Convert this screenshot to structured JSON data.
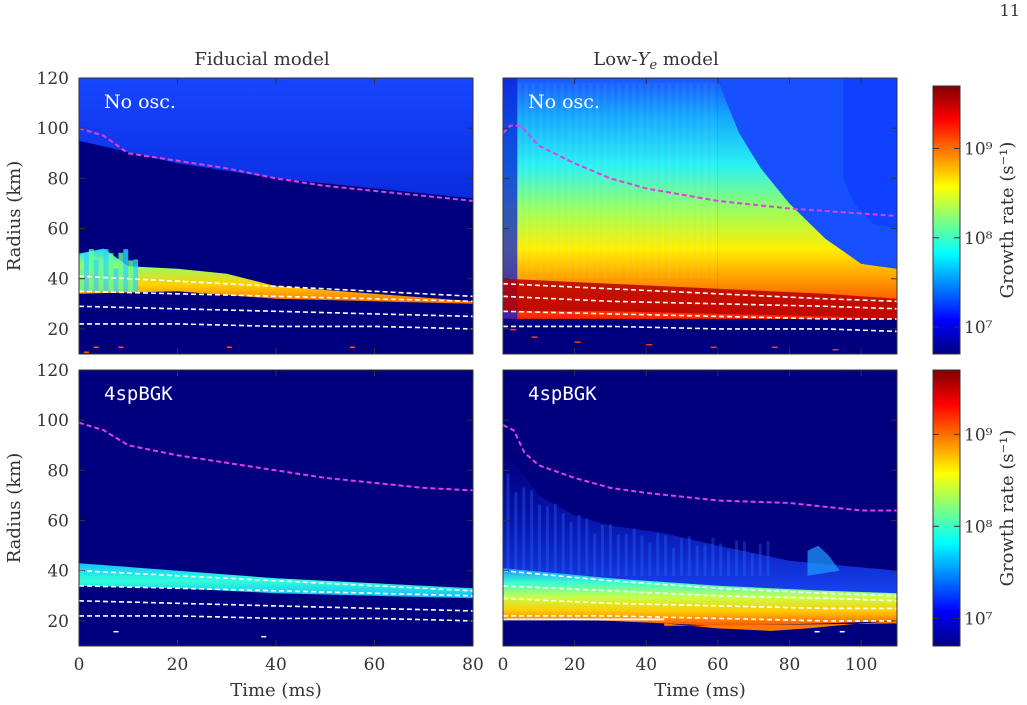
{
  "page_number": "11",
  "colors": {
    "background": "#00007f",
    "magenta_contour": "#e040e0",
    "white_contour": "#ffffff"
  },
  "chart_data": [
    {
      "type": "heatmap",
      "panel": "top-left",
      "column_title": "Fiducial model",
      "label": "No osc.",
      "xlabel": "",
      "ylabel": "Radius (km)",
      "xlim": [
        0,
        80
      ],
      "ylim": [
        10,
        120
      ],
      "xticks": [
        0,
        20,
        40,
        60,
        80
      ],
      "yticks": [
        20,
        40,
        60,
        80,
        100,
        120
      ],
      "xtick_labels": [],
      "ytick_labels": [
        "20",
        "40",
        "60",
        "80",
        "100",
        "120"
      ],
      "colorscale": "jet",
      "magenta_contour": [
        [
          0,
          100
        ],
        [
          5,
          97
        ],
        [
          10,
          90
        ],
        [
          20,
          87
        ],
        [
          30,
          84
        ],
        [
          40,
          80
        ],
        [
          50,
          77
        ],
        [
          60,
          75
        ],
        [
          70,
          73
        ],
        [
          80,
          71
        ]
      ],
      "white_contours": [
        [
          [
            0,
            41
          ],
          [
            20,
            39
          ],
          [
            40,
            37
          ],
          [
            60,
            35
          ],
          [
            80,
            33
          ]
        ],
        [
          [
            0,
            35
          ],
          [
            20,
            34
          ],
          [
            40,
            33
          ],
          [
            60,
            32
          ],
          [
            80,
            31
          ]
        ],
        [
          [
            0,
            29
          ],
          [
            20,
            28
          ],
          [
            40,
            27
          ],
          [
            60,
            26
          ],
          [
            80,
            25
          ]
        ],
        [
          [
            0,
            22
          ],
          [
            20,
            22
          ],
          [
            40,
            21
          ],
          [
            60,
            21
          ],
          [
            80,
            20
          ]
        ]
      ],
      "regions": [
        {
          "name": "outer-blue",
          "x": [
            0,
            80
          ],
          "upper": [
            [
              0,
              120
            ],
            [
              80,
              120
            ]
          ],
          "lower": [
            [
              0,
              95
            ],
            [
              20,
              86
            ],
            [
              40,
              80
            ],
            [
              60,
              76
            ],
            [
              80,
              72
            ]
          ],
          "growth_rate": 15000000.0
        },
        {
          "name": "unstable-band",
          "x": [
            0,
            80
          ],
          "upper": [
            [
              0,
              50
            ],
            [
              5,
              52
            ],
            [
              10,
              45
            ],
            [
              20,
              44
            ],
            [
              30,
              42
            ],
            [
              40,
              37
            ],
            [
              60,
              34
            ],
            [
              80,
              31
            ]
          ],
          "lower": [
            [
              0,
              34
            ],
            [
              20,
              35
            ],
            [
              40,
              32
            ],
            [
              60,
              31
            ],
            [
              80,
              30
            ]
          ],
          "growth_rate": 150000000.0
        }
      ]
    },
    {
      "type": "heatmap",
      "panel": "top-right",
      "column_title": "Low-Y_e model",
      "label": "No osc.",
      "xlabel": "",
      "ylabel": "",
      "xlim": [
        0,
        110
      ],
      "ylim": [
        10,
        120
      ],
      "xticks": [
        0,
        20,
        40,
        60,
        80,
        100
      ],
      "yticks": [
        20,
        40,
        60,
        80,
        100,
        120
      ],
      "xtick_labels": [],
      "ytick_labels": [],
      "colorscale": "jet",
      "magenta_contour": [
        [
          0,
          98
        ],
        [
          2,
          101
        ],
        [
          5,
          101
        ],
        [
          10,
          93
        ],
        [
          20,
          86
        ],
        [
          30,
          80
        ],
        [
          40,
          76
        ],
        [
          60,
          71
        ],
        [
          80,
          68
        ],
        [
          100,
          66
        ],
        [
          110,
          65
        ]
      ],
      "white_contours": [
        [
          [
            0,
            38
          ],
          [
            30,
            36
          ],
          [
            60,
            34
          ],
          [
            90,
            32
          ],
          [
            110,
            31
          ]
        ],
        [
          [
            0,
            33
          ],
          [
            30,
            31
          ],
          [
            60,
            30
          ],
          [
            90,
            29
          ],
          [
            110,
            28
          ]
        ],
        [
          [
            0,
            27
          ],
          [
            30,
            26
          ],
          [
            60,
            25
          ],
          [
            90,
            24
          ],
          [
            110,
            24
          ]
        ],
        [
          [
            0,
            21
          ],
          [
            30,
            21
          ],
          [
            60,
            20
          ],
          [
            90,
            20
          ],
          [
            110,
            19
          ]
        ]
      ],
      "colorbar": {
        "label": "Growth rate (s⁻¹)",
        "scale": "log",
        "range": [
          5000000.0,
          5000000000.0
        ],
        "tick_labels": [
          "10⁷",
          "10⁸",
          "10⁹"
        ],
        "ticks": [
          10000000.0,
          100000000.0,
          1000000000.0
        ]
      }
    },
    {
      "type": "heatmap",
      "panel": "bottom-left",
      "label": "4spBGK",
      "xlabel": "Time (ms)",
      "ylabel": "Radius (km)",
      "xlim": [
        0,
        80
      ],
      "ylim": [
        10,
        120
      ],
      "xticks": [
        0,
        20,
        40,
        60,
        80
      ],
      "yticks": [
        20,
        40,
        60,
        80,
        100,
        120
      ],
      "xtick_labels": [
        "0",
        "20",
        "40",
        "60",
        "80"
      ],
      "ytick_labels": [
        "20",
        "40",
        "60",
        "80",
        "100",
        "120"
      ],
      "colorscale": "jet",
      "magenta_contour": [
        [
          0,
          99
        ],
        [
          5,
          96
        ],
        [
          10,
          90
        ],
        [
          20,
          86
        ],
        [
          30,
          83
        ],
        [
          40,
          80
        ],
        [
          50,
          77
        ],
        [
          60,
          75
        ],
        [
          70,
          73
        ],
        [
          80,
          72
        ]
      ],
      "white_contours": [
        [
          [
            0,
            40
          ],
          [
            20,
            38
          ],
          [
            40,
            36
          ],
          [
            60,
            34
          ],
          [
            80,
            32
          ]
        ],
        [
          [
            0,
            34
          ],
          [
            20,
            33
          ],
          [
            40,
            32
          ],
          [
            60,
            31
          ],
          [
            80,
            30
          ]
        ],
        [
          [
            0,
            28
          ],
          [
            20,
            27
          ],
          [
            40,
            26
          ],
          [
            60,
            25
          ],
          [
            80,
            24
          ]
        ],
        [
          [
            0,
            22
          ],
          [
            20,
            22
          ],
          [
            40,
            21
          ],
          [
            60,
            21
          ],
          [
            80,
            20
          ]
        ]
      ],
      "regions": [
        {
          "name": "unstable-band",
          "x": [
            0,
            80
          ],
          "upper": [
            [
              0,
              43
            ],
            [
              20,
              40
            ],
            [
              40,
              37
            ],
            [
              60,
              35
            ],
            [
              80,
              33
            ]
          ],
          "lower": [
            [
              0,
              34
            ],
            [
              20,
              33
            ],
            [
              40,
              31
            ],
            [
              60,
              30
            ],
            [
              80,
              29
            ]
          ],
          "growth_rate": 40000000.0
        }
      ]
    },
    {
      "type": "heatmap",
      "panel": "bottom-right",
      "label": "4spBGK",
      "xlabel": "Time (ms)",
      "ylabel": "",
      "xlim": [
        0,
        110
      ],
      "ylim": [
        10,
        120
      ],
      "xticks": [
        0,
        20,
        40,
        60,
        80,
        100
      ],
      "yticks": [
        20,
        40,
        60,
        80,
        100,
        120
      ],
      "xtick_labels": [
        "0",
        "20",
        "40",
        "60",
        "80",
        "100"
      ],
      "ytick_labels": [],
      "colorscale": "jet",
      "magenta_contour": [
        [
          0,
          98
        ],
        [
          3,
          96
        ],
        [
          6,
          87
        ],
        [
          10,
          82
        ],
        [
          20,
          77
        ],
        [
          30,
          73
        ],
        [
          40,
          71
        ],
        [
          60,
          68
        ],
        [
          80,
          67
        ],
        [
          100,
          64
        ],
        [
          110,
          64
        ]
      ],
      "white_contours": [
        [
          [
            0,
            40
          ],
          [
            30,
            36
          ],
          [
            60,
            33
          ],
          [
            90,
            31
          ],
          [
            110,
            30
          ]
        ],
        [
          [
            0,
            34
          ],
          [
            30,
            32
          ],
          [
            60,
            30
          ],
          [
            90,
            29
          ],
          [
            110,
            28
          ]
        ],
        [
          [
            0,
            29
          ],
          [
            30,
            27
          ],
          [
            60,
            26
          ],
          [
            90,
            25
          ],
          [
            110,
            25
          ]
        ],
        [
          [
            0,
            22
          ],
          [
            30,
            22
          ],
          [
            60,
            21
          ],
          [
            90,
            20
          ],
          [
            110,
            20
          ]
        ]
      ],
      "colorbar": {
        "label": "Growth rate (s⁻¹)",
        "scale": "log",
        "range": [
          5000000.0,
          5000000000.0
        ],
        "tick_labels": [
          "10⁷",
          "10⁸",
          "10⁹"
        ],
        "ticks": [
          10000000.0,
          100000000.0,
          1000000000.0
        ]
      }
    }
  ]
}
